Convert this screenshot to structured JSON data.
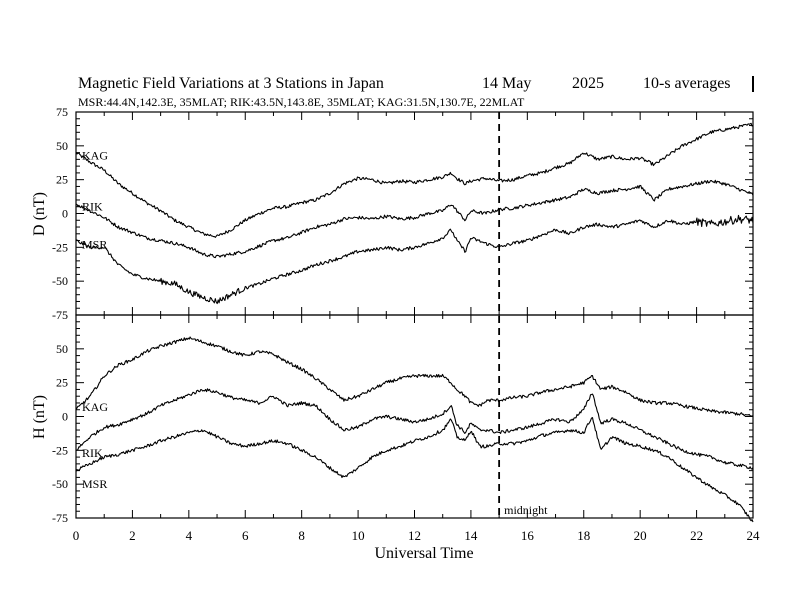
{
  "header": {
    "title": "Magnetic Field Variations at 3 Stations in Japan",
    "date": "14 May",
    "year": "2025",
    "averaging": "10-s averages",
    "subtitle": "MSR:44.4N,142.3E, 35MLAT;  RIK:43.5N,143.8E, 35MLAT;  KAG:31.5N,130.7E, 22MLAT"
  },
  "chart_data": [
    {
      "type": "line",
      "panel": "D",
      "ylabel": "D (nT)",
      "ylim": [
        -75,
        75
      ],
      "yticks": [
        "75",
        "50",
        "25",
        "0",
        "-25",
        "-50",
        "-75"
      ],
      "xlim": [
        0,
        24
      ],
      "series": [
        {
          "name": "KAG",
          "label_value": 43,
          "x": [
            0,
            0.5,
            1,
            1.5,
            2,
            2.5,
            3,
            3.5,
            4,
            4.5,
            5,
            5.5,
            6,
            6.5,
            7,
            7.5,
            8,
            8.5,
            9,
            9.5,
            10,
            10.5,
            11,
            11.5,
            12,
            12.5,
            13,
            13.3,
            13.5,
            13.8,
            14,
            14.5,
            15,
            15.5,
            16,
            16.5,
            17,
            17.5,
            18,
            18.5,
            19,
            19.5,
            20,
            20.5,
            21,
            21.5,
            22,
            22.5,
            23,
            23.5,
            24
          ],
          "y": [
            45,
            38,
            32,
            22,
            15,
            8,
            2,
            -5,
            -10,
            -15,
            -17,
            -12,
            -5,
            0,
            4,
            5,
            8,
            10,
            15,
            22,
            26,
            25,
            22,
            24,
            23,
            25,
            27,
            30,
            26,
            22,
            24,
            26,
            24,
            25,
            28,
            30,
            34,
            37,
            45,
            40,
            42,
            40,
            41,
            36,
            43,
            50,
            55,
            60,
            62,
            64,
            66
          ]
        },
        {
          "name": "RIK",
          "label_value": 5,
          "x": [
            0,
            0.5,
            1,
            1.5,
            2,
            2.5,
            3,
            3.5,
            4,
            4.5,
            5,
            5.5,
            6,
            6.5,
            7,
            7.5,
            8,
            8.5,
            9,
            9.5,
            10,
            10.5,
            11,
            11.5,
            12,
            12.5,
            13,
            13.3,
            13.5,
            13.8,
            14,
            14.5,
            15,
            15.5,
            16,
            16.5,
            17,
            17.5,
            18,
            18.5,
            19,
            19.5,
            20,
            20.5,
            21,
            21.5,
            22,
            22.5,
            23,
            23.5,
            24
          ],
          "y": [
            7,
            2,
            -3,
            -10,
            -14,
            -18,
            -20,
            -22,
            -25,
            -30,
            -32,
            -30,
            -28,
            -24,
            -20,
            -18,
            -14,
            -10,
            -8,
            -4,
            -3,
            -4,
            -2,
            -4,
            -3,
            0,
            2,
            7,
            2,
            -5,
            2,
            0,
            3,
            4,
            6,
            8,
            10,
            12,
            18,
            15,
            17,
            18,
            20,
            10,
            18,
            20,
            22,
            24,
            22,
            18,
            14
          ]
        },
        {
          "name": "MSR",
          "label_value": -23,
          "x": [
            0,
            0.5,
            1,
            1.5,
            2,
            2.5,
            3,
            3.5,
            4,
            4.5,
            5,
            5.5,
            6,
            6.5,
            7,
            7.5,
            8,
            8.5,
            9,
            9.5,
            10,
            10.5,
            11,
            11.5,
            12,
            12.5,
            13,
            13.3,
            13.5,
            13.8,
            14,
            14.5,
            15,
            15.5,
            16,
            16.5,
            17,
            17.5,
            18,
            18.5,
            19,
            19.5,
            20,
            20.5,
            21,
            21.5,
            22,
            22.5,
            23,
            23.5,
            24
          ],
          "y": [
            -20,
            -25,
            -25,
            -38,
            -45,
            -48,
            -50,
            -52,
            -58,
            -62,
            -65,
            -60,
            -55,
            -52,
            -48,
            -45,
            -42,
            -38,
            -35,
            -32,
            -28,
            -27,
            -25,
            -27,
            -25,
            -22,
            -18,
            -12,
            -20,
            -28,
            -18,
            -22,
            -25,
            -22,
            -20,
            -16,
            -12,
            -15,
            -10,
            -8,
            -10,
            -8,
            -5,
            -10,
            -5,
            -8,
            -6,
            -8,
            -6,
            -4,
            -5
          ]
        }
      ]
    },
    {
      "type": "line",
      "panel": "H",
      "ylabel": "H (nT)",
      "xlabel": "Universal Time",
      "ylim": [
        -75,
        75
      ],
      "yticks": [
        "75",
        "50",
        "25",
        "0",
        "-25",
        "-50",
        "-75"
      ],
      "xlim": [
        0,
        24
      ],
      "xticks": [
        "0",
        "2",
        "4",
        "6",
        "8",
        "10",
        "12",
        "14",
        "16",
        "18",
        "20",
        "22",
        "24"
      ],
      "series": [
        {
          "name": "KAG",
          "label_value": 7,
          "x": [
            0,
            0.5,
            1,
            1.5,
            2,
            2.5,
            3,
            3.5,
            4,
            4.5,
            5,
            5.5,
            6,
            6.5,
            7,
            7.5,
            8,
            8.5,
            9,
            9.5,
            10,
            10.5,
            11,
            11.5,
            12,
            12.5,
            13,
            13.3,
            13.5,
            13.8,
            14,
            14.3,
            14.6,
            15,
            15.5,
            16,
            16.5,
            17,
            17.5,
            18,
            18.3,
            18.6,
            19,
            19.5,
            20,
            20.5,
            21,
            21.5,
            22,
            22.5,
            23,
            23.5,
            24
          ],
          "y": [
            5,
            15,
            30,
            38,
            42,
            48,
            52,
            55,
            58,
            55,
            52,
            48,
            45,
            48,
            46,
            40,
            35,
            28,
            20,
            12,
            15,
            20,
            25,
            28,
            30,
            30,
            30,
            25,
            20,
            15,
            10,
            8,
            12,
            12,
            14,
            15,
            18,
            20,
            22,
            25,
            30,
            20,
            22,
            18,
            12,
            10,
            10,
            8,
            6,
            4,
            3,
            2,
            0
          ]
        },
        {
          "name": "RIK",
          "label_value": -27,
          "x": [
            0,
            0.5,
            1,
            1.5,
            2,
            2.5,
            3,
            3.5,
            4,
            4.5,
            5,
            5.5,
            6,
            6.5,
            7,
            7.5,
            8,
            8.5,
            9,
            9.5,
            10,
            10.5,
            11,
            11.5,
            12,
            12.5,
            13,
            13.3,
            13.5,
            13.8,
            14,
            14.3,
            14.6,
            15,
            15.5,
            16,
            16.5,
            17,
            17.5,
            18,
            18.3,
            18.6,
            19,
            19.5,
            20,
            20.5,
            21,
            21.5,
            22,
            22.5,
            23,
            23.5,
            24
          ],
          "y": [
            -25,
            -15,
            -8,
            -6,
            -2,
            2,
            8,
            12,
            16,
            20,
            18,
            14,
            12,
            10,
            15,
            8,
            10,
            8,
            -2,
            -10,
            -8,
            -2,
            0,
            -2,
            -4,
            -2,
            2,
            8,
            -6,
            -12,
            -5,
            -10,
            -10,
            -12,
            -10,
            -8,
            -5,
            -2,
            -4,
            5,
            18,
            -5,
            -2,
            -5,
            -10,
            -15,
            -20,
            -25,
            -28,
            -30,
            -34,
            -36,
            -38
          ]
        },
        {
          "name": "MSR",
          "label_value": -50,
          "x": [
            0,
            0.5,
            1,
            1.5,
            2,
            2.5,
            3,
            3.5,
            4,
            4.5,
            5,
            5.5,
            6,
            6.5,
            7,
            7.5,
            8,
            8.5,
            9,
            9.5,
            10,
            10.5,
            11,
            11.5,
            12,
            12.5,
            13,
            13.3,
            13.5,
            13.8,
            14,
            14.3,
            14.6,
            15,
            15.5,
            16,
            16.5,
            17,
            17.5,
            18,
            18.3,
            18.6,
            19,
            19.5,
            20,
            20.5,
            21,
            21.5,
            22,
            22.5,
            23,
            23.5,
            24
          ],
          "y": [
            -40,
            -35,
            -30,
            -28,
            -25,
            -22,
            -18,
            -15,
            -12,
            -10,
            -15,
            -20,
            -22,
            -20,
            -18,
            -20,
            -25,
            -30,
            -38,
            -45,
            -38,
            -30,
            -25,
            -22,
            -18,
            -15,
            -10,
            -2,
            -15,
            -18,
            -10,
            -22,
            -22,
            -20,
            -20,
            -18,
            -14,
            -12,
            -10,
            -12,
            0,
            -25,
            -15,
            -20,
            -22,
            -25,
            -30,
            -38,
            -45,
            -52,
            -58,
            -65,
            -78
          ]
        }
      ],
      "annotation": "midnight",
      "marker_x": 15
    }
  ]
}
